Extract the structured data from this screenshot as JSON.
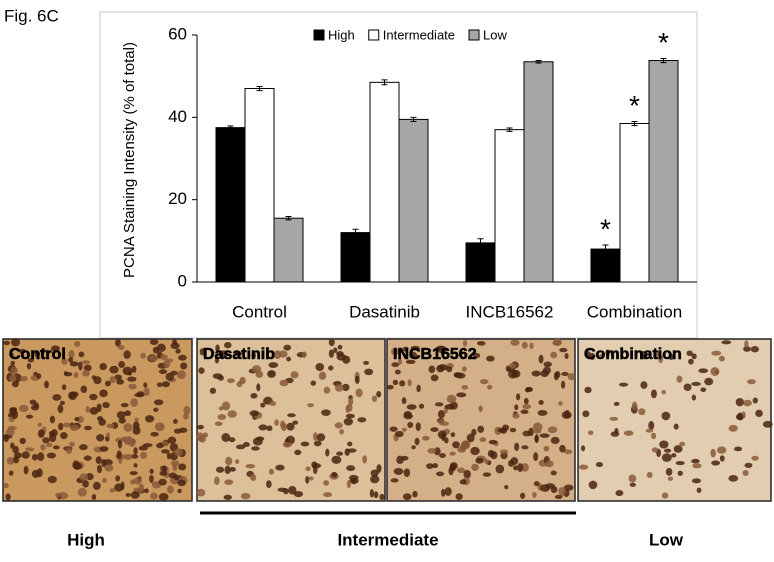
{
  "figure_label": "Fig. 6C",
  "chart_data": {
    "type": "bar",
    "y_label": "PCNA Staining Intensity (% of total)",
    "categories": [
      "Control",
      "Dasatinib",
      "INCB16562",
      "Combination"
    ],
    "series": [
      {
        "name": "High",
        "color": "#000000",
        "values": [
          37.5,
          12,
          9.5,
          8
        ],
        "errors": [
          0.4,
          0.8,
          1.0,
          1.0
        ],
        "markers": [
          null,
          null,
          null,
          "*"
        ]
      },
      {
        "name": "Intermediate",
        "color": "#ffffff",
        "values": [
          47,
          48.5,
          37,
          38.5
        ],
        "errors": [
          0.5,
          0.6,
          0.4,
          0.5
        ],
        "markers": [
          null,
          null,
          null,
          "*"
        ]
      },
      {
        "name": "Low",
        "color": "#a6a6a6",
        "values": [
          15.5,
          39.5,
          53.5,
          53.8
        ],
        "errors": [
          0.4,
          0.5,
          0.3,
          0.5
        ],
        "markers": [
          null,
          null,
          null,
          "*"
        ]
      }
    ],
    "ylim": [
      0,
      60
    ],
    "yticks": [
      0,
      20,
      40,
      60
    ],
    "legend": "top"
  },
  "panels": [
    "Control",
    "Dasatinib",
    "INCB16562",
    "Combination"
  ],
  "scale_labels": [
    "High",
    "Intermediate",
    "Low"
  ]
}
